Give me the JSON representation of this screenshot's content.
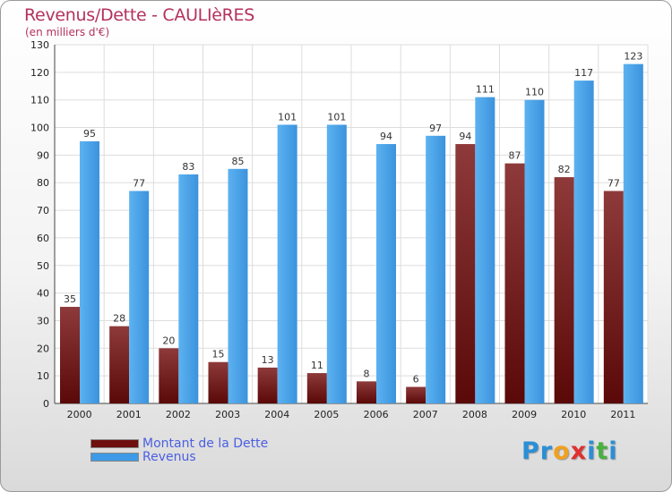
{
  "title": "Revenus/Dette - CAULIèRES",
  "subtitle": "(en milliers d'€)",
  "colors": {
    "title": "#b4315e",
    "dette": "#6e0e0e",
    "revenus": "#3e9ae6",
    "legend_text": "#4b5fe0",
    "grid": "#dddddd"
  },
  "chart_data": {
    "type": "bar",
    "categories": [
      "2000",
      "2001",
      "2002",
      "2003",
      "2004",
      "2005",
      "2006",
      "2007",
      "2008",
      "2009",
      "2010",
      "2011"
    ],
    "series": [
      {
        "name": "Montant de la Dette",
        "values": [
          35,
          28,
          20,
          15,
          13,
          11,
          8,
          6,
          94,
          87,
          82,
          77
        ]
      },
      {
        "name": "Revenus",
        "values": [
          95,
          77,
          83,
          85,
          101,
          101,
          94,
          97,
          111,
          110,
          117,
          123
        ]
      }
    ],
    "ylim": [
      0,
      130
    ],
    "yticks": [
      0,
      10,
      20,
      30,
      40,
      50,
      60,
      70,
      80,
      90,
      100,
      110,
      120,
      130
    ],
    "grid": true,
    "legend_position": "bottom-left"
  },
  "logo": {
    "letters": [
      "P",
      "r",
      "o",
      "x",
      "i",
      "t",
      "i"
    ],
    "colors": [
      "#2a8fd6",
      "#2a8fd6",
      "#f0a020",
      "#e03030",
      "#2a8fd6",
      "#4ab040",
      "#2a8fd6"
    ]
  }
}
